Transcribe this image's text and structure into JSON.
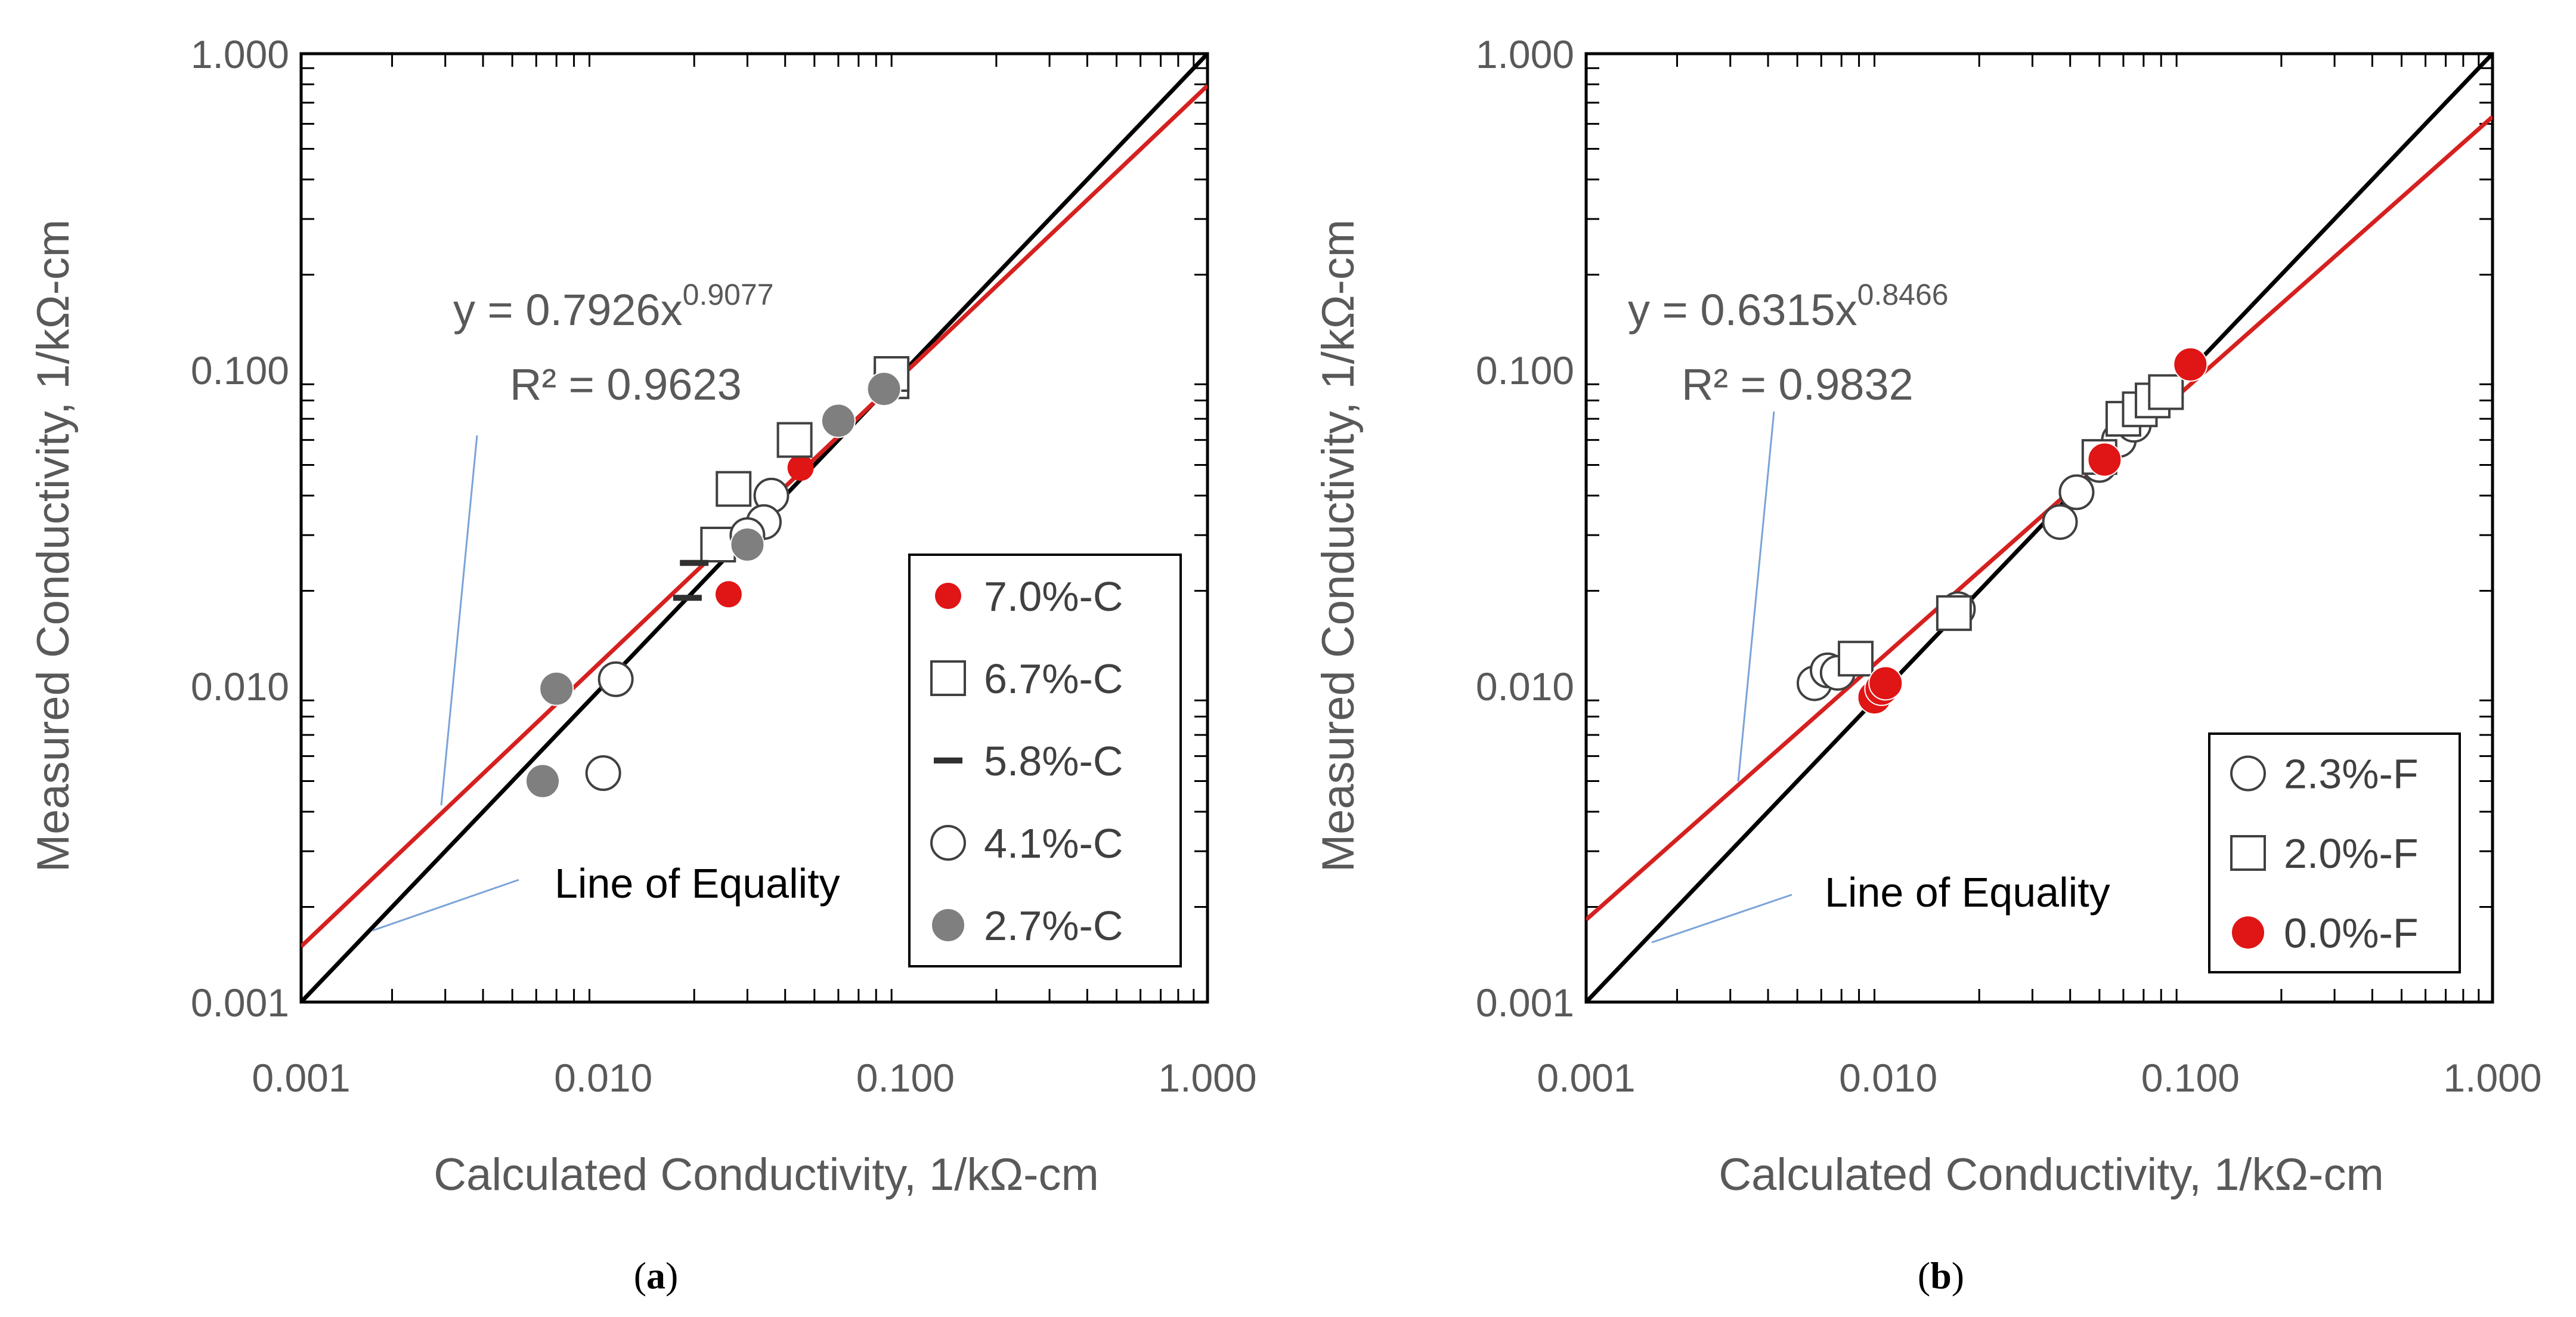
{
  "chart_data": [
    {
      "type": "scatter",
      "panel_caption": {
        "open": "(",
        "letter": "a",
        "close": ")"
      },
      "xlabel": "Calculated Conductivity, 1/kΩ-cm",
      "ylabel": "Measured Conductivity, 1/kΩ-cm",
      "xscale": "log",
      "yscale": "log",
      "xlim": [
        0.001,
        1.0
      ],
      "ylim": [
        0.001,
        1.0
      ],
      "x_ticks": [
        "0.001",
        "0.010",
        "0.100",
        "1.000"
      ],
      "y_ticks": [
        "0.001",
        "0.010",
        "0.100",
        "1.000"
      ],
      "grid": false,
      "legend_position": "bottom-right",
      "fit": {
        "equation_prefix": "y = 0.7926x",
        "exponent": "0.9077",
        "r2_label": "R² = 0.9623",
        "a": 0.7926,
        "b": 0.9077,
        "color": "#d62020"
      },
      "equality_line_label": "Line of Equality",
      "series": [
        {
          "name": "7.0%-C",
          "marker": "circle-filled",
          "color": "#e01515",
          "size": "small",
          "points": [
            [
              0.026,
              0.029
            ],
            [
              0.045,
              0.049
            ],
            [
              0.026,
              0.0195
            ]
          ]
        },
        {
          "name": "6.7%-C",
          "marker": "square-open",
          "color": "#404040",
          "size": "normal",
          "points": [
            [
              0.043,
              0.06
            ],
            [
              0.027,
              0.042
            ],
            [
              0.024,
              0.028
            ],
            [
              0.09,
              0.092
            ],
            [
              0.09,
              0.097
            ]
          ]
        },
        {
          "name": "5.8%-C",
          "marker": "dash",
          "color": "#303030",
          "size": "normal",
          "points": [
            [
              0.02,
              0.0245
            ],
            [
              0.019,
              0.019
            ]
          ]
        },
        {
          "name": "4.1%-C",
          "marker": "circle-open",
          "color": "#404040",
          "size": "normal",
          "points": [
            [
              0.011,
              0.0105
            ],
            [
              0.01,
              0.0053
            ],
            [
              0.036,
              0.04
            ],
            [
              0.034,
              0.033
            ],
            [
              0.03,
              0.03
            ]
          ]
        },
        {
          "name": "2.7%-C",
          "marker": "circle-filled",
          "color": "#7f7f7f",
          "size": "normal",
          "points": [
            [
              0.007,
              0.0098
            ],
            [
              0.0063,
              0.005
            ],
            [
              0.06,
              0.069
            ],
            [
              0.085,
              0.087
            ],
            [
              0.03,
              0.028
            ]
          ]
        }
      ]
    },
    {
      "type": "scatter",
      "panel_caption": {
        "open": "(",
        "letter": "b",
        "close": ")"
      },
      "xlabel": "Calculated Conductivity, 1/kΩ-cm",
      "ylabel": "Measured Conductivity, 1/kΩ-cm",
      "xscale": "log",
      "yscale": "log",
      "xlim": [
        0.001,
        1.0
      ],
      "ylim": [
        0.001,
        1.0
      ],
      "x_ticks": [
        "0.001",
        "0.010",
        "0.100",
        "1.000"
      ],
      "y_ticks": [
        "0.001",
        "0.010",
        "0.100",
        "1.000"
      ],
      "grid": false,
      "legend_position": "bottom-right",
      "fit": {
        "equation_prefix": "y = 0.6315x",
        "exponent": "0.8466",
        "r2_label": "R² = 0.9832",
        "a": 0.6315,
        "b": 0.8466,
        "color": "#d62020"
      },
      "equality_line_label": "Line of Equality",
      "series": [
        {
          "name": "2.3%-F",
          "marker": "circle-open",
          "color": "#404040",
          "size": "normal",
          "points": [
            [
              0.0057,
              0.0102
            ],
            [
              0.0063,
              0.0112
            ],
            [
              0.0068,
              0.011
            ],
            [
              0.017,
              0.0175
            ],
            [
              0.037,
              0.033
            ],
            [
              0.042,
              0.041
            ],
            [
              0.05,
              0.05
            ],
            [
              0.058,
              0.06
            ],
            [
              0.065,
              0.067
            ]
          ]
        },
        {
          "name": "2.0%-F",
          "marker": "square-open",
          "color": "#404040",
          "size": "normal",
          "points": [
            [
              0.0078,
              0.0122
            ],
            [
              0.0165,
              0.017
            ],
            [
              0.05,
              0.053
            ],
            [
              0.06,
              0.07
            ],
            [
              0.068,
              0.075
            ],
            [
              0.075,
              0.08
            ],
            [
              0.083,
              0.085
            ]
          ]
        },
        {
          "name": "0.0%-F",
          "marker": "circle-filled",
          "color": "#e01515",
          "size": "normal",
          "points": [
            [
              0.009,
              0.0092
            ],
            [
              0.0095,
              0.0098
            ],
            [
              0.0098,
              0.0102
            ],
            [
              0.052,
              0.052
            ],
            [
              0.1,
              0.104
            ]
          ]
        }
      ]
    }
  ]
}
